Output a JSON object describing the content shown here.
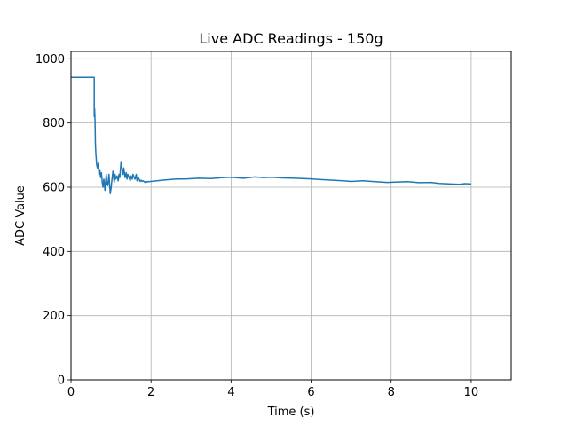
{
  "chart_data": {
    "type": "line",
    "title": "Live ADC Readings - 150g",
    "xlabel": "Time (s)",
    "ylabel": "ADC Value",
    "xlim": [
      0,
      11
    ],
    "ylim": [
      0,
      1023
    ],
    "xticks": [
      0,
      2,
      4,
      6,
      8,
      10
    ],
    "yticks": [
      0,
      200,
      400,
      600,
      800,
      1000
    ],
    "grid": true,
    "series": [
      {
        "color": "#1f77b4",
        "x": [
          0.0,
          0.58,
          0.58,
          0.59,
          0.6,
          0.61,
          0.62,
          0.63,
          0.64,
          0.66,
          0.68,
          0.7,
          0.72,
          0.74,
          0.76,
          0.78,
          0.8,
          0.82,
          0.85,
          0.88,
          0.9,
          0.92,
          0.95,
          0.98,
          1.0,
          1.02,
          1.05,
          1.08,
          1.1,
          1.12,
          1.15,
          1.18,
          1.2,
          1.22,
          1.25,
          1.28,
          1.3,
          1.32,
          1.35,
          1.38,
          1.4,
          1.42,
          1.45,
          1.48,
          1.5,
          1.53,
          1.55,
          1.58,
          1.6,
          1.63,
          1.65,
          1.68,
          1.7,
          1.73,
          1.75,
          1.78,
          1.8,
          1.83,
          1.85,
          1.88,
          1.9,
          1.93,
          1.95,
          1.98,
          2.0,
          2.3,
          2.6,
          2.9,
          3.2,
          3.5,
          3.8,
          4.0,
          4.3,
          4.6,
          4.8,
          5.0,
          5.3,
          5.6,
          6.0,
          6.2,
          6.5,
          6.8,
          7.0,
          7.3,
          7.6,
          7.9,
          8.1,
          8.4,
          8.7,
          9.0,
          9.2,
          9.5,
          9.7,
          9.85,
          10.0
        ],
        "y": [
          942,
          942,
          820,
          845,
          805,
          735,
          705,
          690,
          670,
          660,
          675,
          640,
          655,
          630,
          645,
          615,
          600,
          625,
          590,
          640,
          610,
          605,
          640,
          580,
          595,
          620,
          650,
          615,
          640,
          625,
          635,
          620,
          640,
          630,
          680,
          655,
          640,
          660,
          630,
          645,
          625,
          640,
          630,
          620,
          635,
          625,
          640,
          630,
          625,
          640,
          620,
          630,
          625,
          618,
          622,
          618,
          620,
          618,
          615,
          618,
          616,
          618,
          617,
          618,
          618,
          622,
          625,
          626,
          628,
          627,
          630,
          631,
          628,
          632,
          630,
          631,
          629,
          628,
          626,
          624,
          622,
          620,
          618,
          620,
          617,
          615,
          616,
          617,
          614,
          615,
          612,
          610,
          609,
          611,
          610
        ]
      }
    ]
  }
}
